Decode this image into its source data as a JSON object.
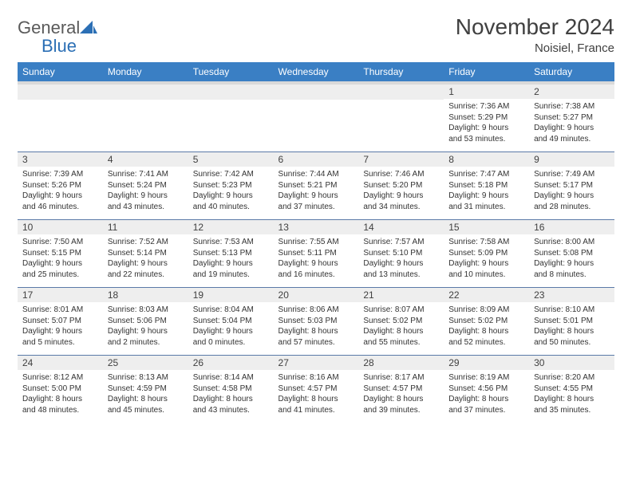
{
  "logo": {
    "text1": "General",
    "text2": "Blue"
  },
  "title": "November 2024",
  "subtitle": "Noisiel, France",
  "colors": {
    "header_bg": "#3a7fc4",
    "header_sep": "#d9d9d9",
    "daynum_bg": "#eeeeee",
    "row_border": "#5a7aa8",
    "logo_gray": "#5a5a5a",
    "logo_blue": "#2b6fb5"
  },
  "weekdays": [
    "Sunday",
    "Monday",
    "Tuesday",
    "Wednesday",
    "Thursday",
    "Friday",
    "Saturday"
  ],
  "weeks": [
    [
      {
        "n": "",
        "lines": []
      },
      {
        "n": "",
        "lines": []
      },
      {
        "n": "",
        "lines": []
      },
      {
        "n": "",
        "lines": []
      },
      {
        "n": "",
        "lines": []
      },
      {
        "n": "1",
        "lines": [
          "Sunrise: 7:36 AM",
          "Sunset: 5:29 PM",
          "Daylight: 9 hours",
          "and 53 minutes."
        ]
      },
      {
        "n": "2",
        "lines": [
          "Sunrise: 7:38 AM",
          "Sunset: 5:27 PM",
          "Daylight: 9 hours",
          "and 49 minutes."
        ]
      }
    ],
    [
      {
        "n": "3",
        "lines": [
          "Sunrise: 7:39 AM",
          "Sunset: 5:26 PM",
          "Daylight: 9 hours",
          "and 46 minutes."
        ]
      },
      {
        "n": "4",
        "lines": [
          "Sunrise: 7:41 AM",
          "Sunset: 5:24 PM",
          "Daylight: 9 hours",
          "and 43 minutes."
        ]
      },
      {
        "n": "5",
        "lines": [
          "Sunrise: 7:42 AM",
          "Sunset: 5:23 PM",
          "Daylight: 9 hours",
          "and 40 minutes."
        ]
      },
      {
        "n": "6",
        "lines": [
          "Sunrise: 7:44 AM",
          "Sunset: 5:21 PM",
          "Daylight: 9 hours",
          "and 37 minutes."
        ]
      },
      {
        "n": "7",
        "lines": [
          "Sunrise: 7:46 AM",
          "Sunset: 5:20 PM",
          "Daylight: 9 hours",
          "and 34 minutes."
        ]
      },
      {
        "n": "8",
        "lines": [
          "Sunrise: 7:47 AM",
          "Sunset: 5:18 PM",
          "Daylight: 9 hours",
          "and 31 minutes."
        ]
      },
      {
        "n": "9",
        "lines": [
          "Sunrise: 7:49 AM",
          "Sunset: 5:17 PM",
          "Daylight: 9 hours",
          "and 28 minutes."
        ]
      }
    ],
    [
      {
        "n": "10",
        "lines": [
          "Sunrise: 7:50 AM",
          "Sunset: 5:15 PM",
          "Daylight: 9 hours",
          "and 25 minutes."
        ]
      },
      {
        "n": "11",
        "lines": [
          "Sunrise: 7:52 AM",
          "Sunset: 5:14 PM",
          "Daylight: 9 hours",
          "and 22 minutes."
        ]
      },
      {
        "n": "12",
        "lines": [
          "Sunrise: 7:53 AM",
          "Sunset: 5:13 PM",
          "Daylight: 9 hours",
          "and 19 minutes."
        ]
      },
      {
        "n": "13",
        "lines": [
          "Sunrise: 7:55 AM",
          "Sunset: 5:11 PM",
          "Daylight: 9 hours",
          "and 16 minutes."
        ]
      },
      {
        "n": "14",
        "lines": [
          "Sunrise: 7:57 AM",
          "Sunset: 5:10 PM",
          "Daylight: 9 hours",
          "and 13 minutes."
        ]
      },
      {
        "n": "15",
        "lines": [
          "Sunrise: 7:58 AM",
          "Sunset: 5:09 PM",
          "Daylight: 9 hours",
          "and 10 minutes."
        ]
      },
      {
        "n": "16",
        "lines": [
          "Sunrise: 8:00 AM",
          "Sunset: 5:08 PM",
          "Daylight: 9 hours",
          "and 8 minutes."
        ]
      }
    ],
    [
      {
        "n": "17",
        "lines": [
          "Sunrise: 8:01 AM",
          "Sunset: 5:07 PM",
          "Daylight: 9 hours",
          "and 5 minutes."
        ]
      },
      {
        "n": "18",
        "lines": [
          "Sunrise: 8:03 AM",
          "Sunset: 5:06 PM",
          "Daylight: 9 hours",
          "and 2 minutes."
        ]
      },
      {
        "n": "19",
        "lines": [
          "Sunrise: 8:04 AM",
          "Sunset: 5:04 PM",
          "Daylight: 9 hours",
          "and 0 minutes."
        ]
      },
      {
        "n": "20",
        "lines": [
          "Sunrise: 8:06 AM",
          "Sunset: 5:03 PM",
          "Daylight: 8 hours",
          "and 57 minutes."
        ]
      },
      {
        "n": "21",
        "lines": [
          "Sunrise: 8:07 AM",
          "Sunset: 5:02 PM",
          "Daylight: 8 hours",
          "and 55 minutes."
        ]
      },
      {
        "n": "22",
        "lines": [
          "Sunrise: 8:09 AM",
          "Sunset: 5:02 PM",
          "Daylight: 8 hours",
          "and 52 minutes."
        ]
      },
      {
        "n": "23",
        "lines": [
          "Sunrise: 8:10 AM",
          "Sunset: 5:01 PM",
          "Daylight: 8 hours",
          "and 50 minutes."
        ]
      }
    ],
    [
      {
        "n": "24",
        "lines": [
          "Sunrise: 8:12 AM",
          "Sunset: 5:00 PM",
          "Daylight: 8 hours",
          "and 48 minutes."
        ]
      },
      {
        "n": "25",
        "lines": [
          "Sunrise: 8:13 AM",
          "Sunset: 4:59 PM",
          "Daylight: 8 hours",
          "and 45 minutes."
        ]
      },
      {
        "n": "26",
        "lines": [
          "Sunrise: 8:14 AM",
          "Sunset: 4:58 PM",
          "Daylight: 8 hours",
          "and 43 minutes."
        ]
      },
      {
        "n": "27",
        "lines": [
          "Sunrise: 8:16 AM",
          "Sunset: 4:57 PM",
          "Daylight: 8 hours",
          "and 41 minutes."
        ]
      },
      {
        "n": "28",
        "lines": [
          "Sunrise: 8:17 AM",
          "Sunset: 4:57 PM",
          "Daylight: 8 hours",
          "and 39 minutes."
        ]
      },
      {
        "n": "29",
        "lines": [
          "Sunrise: 8:19 AM",
          "Sunset: 4:56 PM",
          "Daylight: 8 hours",
          "and 37 minutes."
        ]
      },
      {
        "n": "30",
        "lines": [
          "Sunrise: 8:20 AM",
          "Sunset: 4:55 PM",
          "Daylight: 8 hours",
          "and 35 minutes."
        ]
      }
    ]
  ]
}
